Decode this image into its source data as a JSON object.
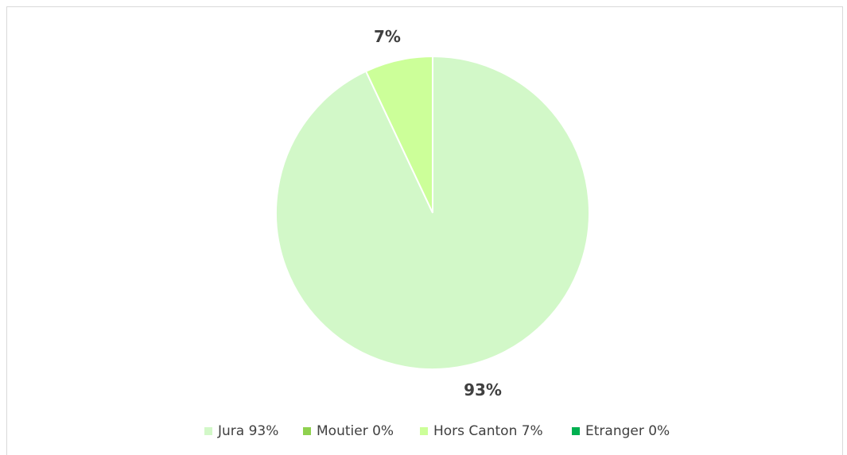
{
  "chart_data": {
    "type": "pie",
    "title": "",
    "slices": [
      {
        "label": "Jura 93%",
        "value": 93,
        "color": "#d2f8c8",
        "data_label": "93%"
      },
      {
        "label": "Moutier 0%",
        "value": 0,
        "color": "#8fd14f",
        "data_label": ""
      },
      {
        "label": "Hors Canton 7%",
        "value": 7,
        "color": "#ccff99",
        "data_label": "7%"
      },
      {
        "label": "Etranger 0%",
        "value": 0,
        "color": "#00b050",
        "data_label": ""
      }
    ],
    "start_angle_deg": 0,
    "direction": "clockwise",
    "legend_position": "bottom"
  }
}
